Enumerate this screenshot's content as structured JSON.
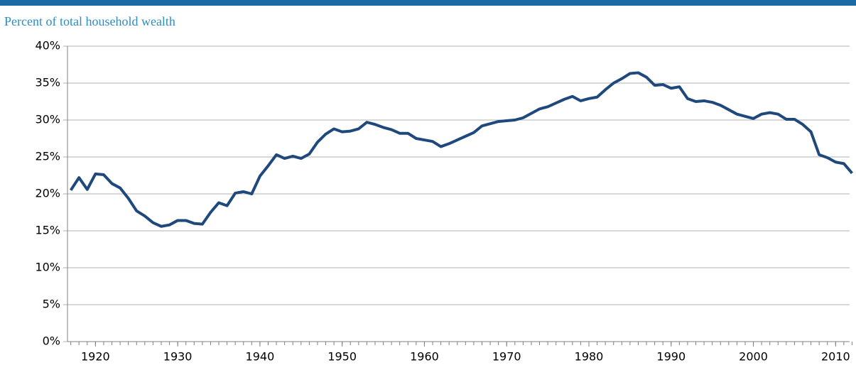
{
  "chart_data": {
    "type": "line",
    "ylabel": "Percent of total household wealth",
    "x": [
      1917,
      1918,
      1919,
      1920,
      1921,
      1922,
      1923,
      1924,
      1925,
      1926,
      1927,
      1928,
      1929,
      1930,
      1931,
      1932,
      1933,
      1934,
      1935,
      1936,
      1937,
      1938,
      1939,
      1940,
      1941,
      1942,
      1943,
      1944,
      1945,
      1946,
      1947,
      1948,
      1949,
      1950,
      1951,
      1952,
      1953,
      1954,
      1955,
      1956,
      1957,
      1958,
      1959,
      1960,
      1961,
      1962,
      1963,
      1964,
      1965,
      1966,
      1967,
      1968,
      1969,
      1970,
      1971,
      1972,
      1973,
      1974,
      1975,
      1976,
      1977,
      1978,
      1979,
      1980,
      1981,
      1982,
      1983,
      1984,
      1985,
      1986,
      1987,
      1988,
      1989,
      1990,
      1991,
      1992,
      1993,
      1994,
      1995,
      1996,
      1997,
      1998,
      1999,
      2000,
      2001,
      2002,
      2003,
      2004,
      2005,
      2006,
      2007,
      2008,
      2009,
      2010,
      2011,
      2012
    ],
    "values": [
      20.5,
      22.2,
      20.6,
      22.7,
      22.6,
      21.4,
      20.8,
      19.4,
      17.7,
      17.0,
      16.1,
      15.6,
      15.8,
      16.4,
      16.4,
      16.0,
      15.9,
      17.5,
      18.8,
      18.4,
      20.1,
      20.3,
      20.0,
      22.4,
      23.8,
      25.3,
      24.8,
      25.1,
      24.8,
      25.4,
      27.0,
      28.1,
      28.8,
      28.4,
      28.5,
      28.8,
      29.7,
      29.4,
      29.0,
      28.7,
      28.2,
      28.2,
      27.5,
      27.3,
      27.1,
      26.4,
      26.8,
      27.3,
      27.8,
      28.3,
      29.2,
      29.5,
      29.8,
      29.9,
      30.0,
      30.3,
      30.9,
      31.5,
      31.8,
      32.3,
      32.8,
      33.2,
      32.6,
      32.9,
      33.1,
      34.1,
      35.0,
      35.6,
      36.3,
      36.4,
      35.8,
      34.7,
      34.8,
      34.3,
      34.5,
      32.9,
      32.5,
      32.6,
      32.4,
      32.0,
      31.4,
      30.8,
      30.5,
      30.2,
      30.8,
      31.0,
      30.8,
      30.1,
      30.1,
      29.4,
      28.4,
      25.3,
      24.9,
      24.3,
      24.1,
      22.8
    ],
    "color": "#1f497d",
    "xlim": [
      1916.6,
      2011.7
    ],
    "xticks": [
      1920,
      1930,
      1940,
      1950,
      1960,
      1970,
      1980,
      1990,
      2000,
      2010
    ],
    "ylim": [
      0,
      40
    ],
    "yticks": [
      {
        "value": 0,
        "label": "0%"
      },
      {
        "value": 5,
        "label": "5%"
      },
      {
        "value": 10,
        "label": "10%"
      },
      {
        "value": 15,
        "label": "15%"
      },
      {
        "value": 20,
        "label": "20%"
      },
      {
        "value": 25,
        "label": "25%"
      },
      {
        "value": 30,
        "label": "30%"
      },
      {
        "value": 35,
        "label": "35%"
      },
      {
        "value": 40,
        "label": "40%"
      }
    ],
    "grid": true
  }
}
